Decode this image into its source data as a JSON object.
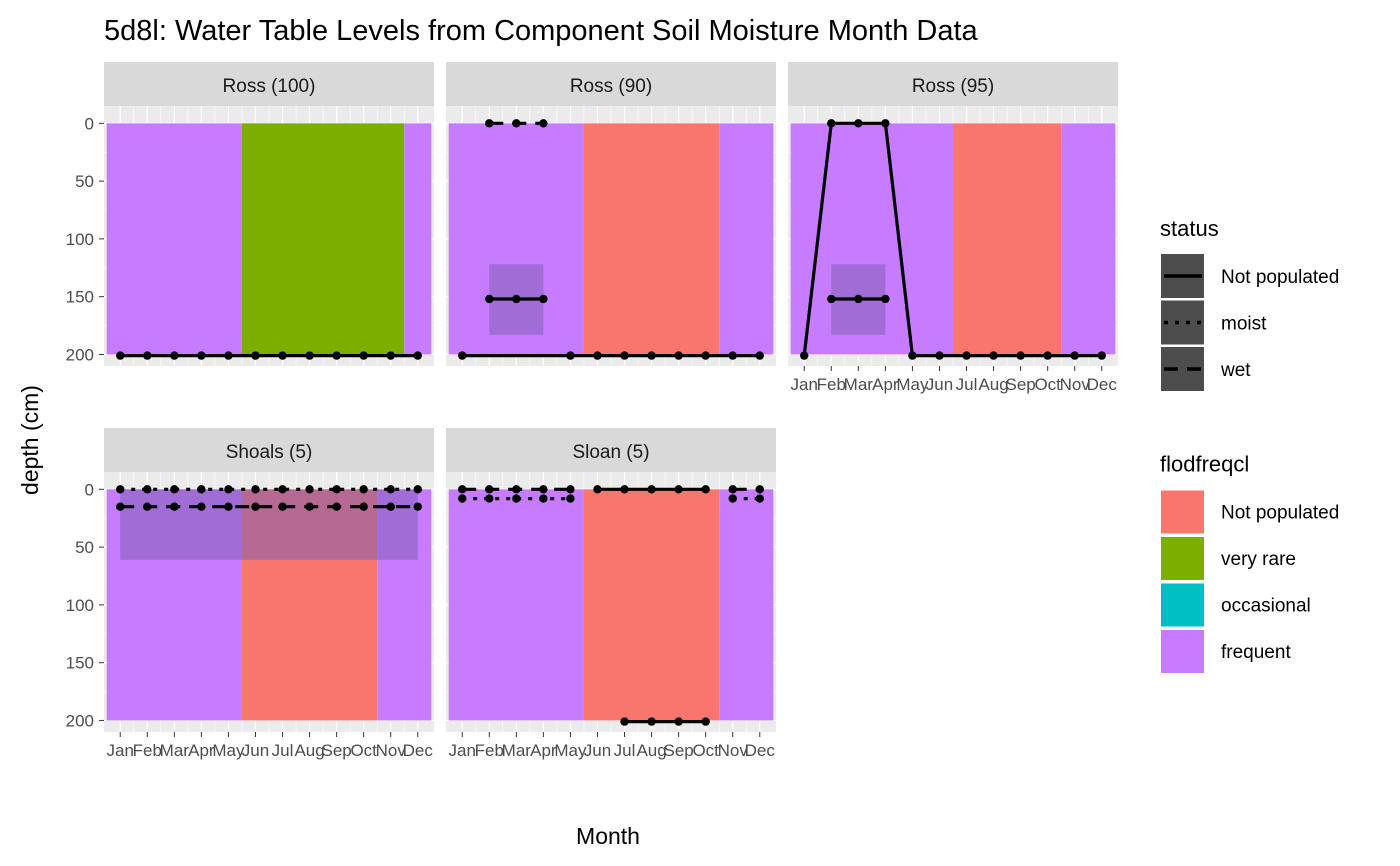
{
  "title": "5d8l: Water Table Levels from Component Soil Moisture Month Data",
  "colors": {
    "not_populated": "#F8766D",
    "very_rare": "#7CAE00",
    "occasional": "#00BFC4",
    "frequent": "#C77CFF",
    "panel_bg": "#EBEBEB",
    "strip_bg": "#D9D9D9",
    "grid": "#FFFFFF",
    "line": "#000000",
    "band": "#7F5FB2"
  },
  "chart_data": {
    "type": "faceted-area",
    "title": "5d8l: Water Table Levels from Component Soil Moisture Month Data",
    "xlabel": "Month",
    "ylabel": "depth (cm)",
    "x_categories": [
      "Jan",
      "Feb",
      "Mar",
      "Apr",
      "May",
      "Jun",
      "Jul",
      "Aug",
      "Sep",
      "Oct",
      "Nov",
      "Dec"
    ],
    "y_ticks": [
      0,
      50,
      100,
      150,
      200
    ],
    "ylim": [
      -15,
      210
    ],
    "y_reversed": true,
    "legends": [
      {
        "title": "status",
        "type": "linetype",
        "entries": [
          {
            "label": "Not populated",
            "dash": "solid"
          },
          {
            "label": "moist",
            "dash": "dotted"
          },
          {
            "label": "wet",
            "dash": "dashed"
          }
        ]
      },
      {
        "title": "flodfreqcl",
        "type": "fill",
        "entries": [
          {
            "label": "Not populated",
            "color": "#F8766D"
          },
          {
            "label": "very rare",
            "color": "#7CAE00"
          },
          {
            "label": "occasional",
            "color": "#00BFC4"
          },
          {
            "label": "frequent",
            "color": "#C77CFF"
          }
        ]
      }
    ],
    "panels": [
      {
        "name": "Ross (100)",
        "fills": [
          {
            "from": 0.5,
            "to": 5.5,
            "class": "frequent"
          },
          {
            "from": 5.5,
            "to": 11.5,
            "class": "very rare"
          },
          {
            "from": 11.5,
            "to": 12.5,
            "class": "frequent"
          }
        ],
        "bands": [],
        "lines": [
          {
            "status": "Not populated",
            "x": [
              1,
              2,
              3,
              4,
              5,
              6,
              7,
              8,
              9,
              10,
              11,
              12
            ],
            "y": [
              201,
              201,
              201,
              201,
              201,
              201,
              201,
              201,
              201,
              201,
              201,
              201
            ]
          }
        ]
      },
      {
        "name": "Ross (90)",
        "fills": [
          {
            "from": 0.5,
            "to": 5.5,
            "class": "frequent"
          },
          {
            "from": 5.5,
            "to": 10.5,
            "class": "Not populated"
          },
          {
            "from": 10.5,
            "to": 12.5,
            "class": "frequent"
          }
        ],
        "bands": [
          {
            "x1": 2,
            "x2": 4,
            "y1": 122,
            "y2": 183
          }
        ],
        "lines": [
          {
            "status": "wet",
            "x": [
              2,
              3,
              4
            ],
            "y": [
              0,
              0,
              0
            ]
          },
          {
            "status": "Not populated",
            "x": [
              2,
              3,
              4
            ],
            "y": [
              152,
              152,
              152
            ]
          },
          {
            "status": "Not populated",
            "x": [
              1,
              5,
              6,
              7,
              8,
              9,
              10,
              11,
              12
            ],
            "y": [
              201,
              201,
              201,
              201,
              201,
              201,
              201,
              201,
              201
            ]
          }
        ]
      },
      {
        "name": "Ross (95)",
        "fills": [
          {
            "from": 0.5,
            "to": 6.5,
            "class": "frequent"
          },
          {
            "from": 6.5,
            "to": 10.5,
            "class": "Not populated"
          },
          {
            "from": 10.5,
            "to": 12.5,
            "class": "frequent"
          }
        ],
        "bands": [
          {
            "x1": 2,
            "x2": 4,
            "y1": 122,
            "y2": 183
          }
        ],
        "lines": [
          {
            "status": "Not populated",
            "x": [
              1,
              2,
              3,
              4,
              5,
              6,
              7,
              8,
              9,
              10,
              11,
              12
            ],
            "y": [
              201,
              0,
              0,
              0,
              201,
              201,
              201,
              201,
              201,
              201,
              201,
              201
            ]
          },
          {
            "status": "Not populated",
            "x": [
              2,
              3,
              4
            ],
            "y": [
              152,
              152,
              152
            ]
          }
        ]
      },
      {
        "name": "Shoals (5)",
        "fills": [
          {
            "from": 0.5,
            "to": 5.5,
            "class": "frequent"
          },
          {
            "from": 5.5,
            "to": 10.5,
            "class": "Not populated"
          },
          {
            "from": 10.5,
            "to": 12.5,
            "class": "frequent"
          }
        ],
        "bands": [
          {
            "x1": 1,
            "x2": 12,
            "y1": 0,
            "y2": 61
          }
        ],
        "lines": [
          {
            "status": "moist",
            "x": [
              1,
              2,
              3,
              4,
              5,
              6,
              7,
              8,
              9,
              10,
              11,
              12
            ],
            "y": [
              0,
              0,
              0,
              0,
              0,
              0,
              0,
              0,
              0,
              0,
              0,
              0
            ]
          },
          {
            "status": "wet",
            "x": [
              1,
              2,
              3,
              4,
              5,
              6,
              7,
              8,
              9,
              10,
              11,
              12
            ],
            "y": [
              15,
              15,
              15,
              15,
              15,
              15,
              15,
              15,
              15,
              15,
              15,
              15
            ]
          }
        ]
      },
      {
        "name": "Sloan (5)",
        "fills": [
          {
            "from": 0.5,
            "to": 5.5,
            "class": "frequent"
          },
          {
            "from": 5.5,
            "to": 10.5,
            "class": "Not populated"
          },
          {
            "from": 10.5,
            "to": 12.5,
            "class": "frequent"
          }
        ],
        "bands": [],
        "lines": [
          {
            "status": "wet",
            "x": [
              1,
              2,
              3,
              4,
              5
            ],
            "y": [
              0,
              0,
              0,
              0,
              0
            ]
          },
          {
            "status": "moist",
            "x": [
              1,
              2,
              3,
              4,
              5
            ],
            "y": [
              8,
              8,
              8,
              8,
              8
            ]
          },
          {
            "status": "Not populated",
            "x": [
              6,
              7,
              8,
              9,
              10
            ],
            "y": [
              0,
              0,
              0,
              0,
              0
            ]
          },
          {
            "status": "wet",
            "x": [
              11,
              12
            ],
            "y": [
              0,
              0
            ]
          },
          {
            "status": "moist",
            "x": [
              11,
              12
            ],
            "y": [
              8,
              8
            ]
          },
          {
            "status": "Not populated",
            "x": [
              7,
              8,
              9,
              10
            ],
            "y": [
              201,
              201,
              201,
              201
            ]
          }
        ]
      }
    ]
  }
}
